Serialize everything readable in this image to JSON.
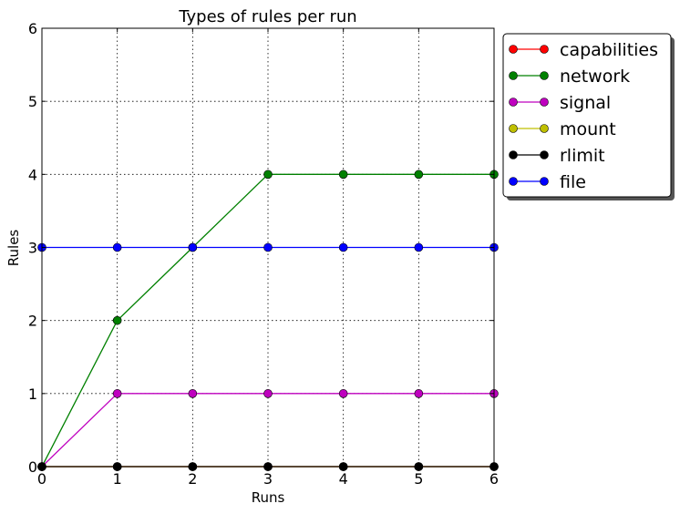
{
  "chart_data": {
    "type": "line",
    "title": "Types of rules per run",
    "xlabel": "Runs",
    "ylabel": "Rules",
    "xlim": [
      0,
      6
    ],
    "ylim": [
      0,
      6
    ],
    "x": [
      0,
      1,
      2,
      3,
      4,
      5,
      6
    ],
    "xticks": [
      "0",
      "1",
      "2",
      "3",
      "4",
      "5",
      "6"
    ],
    "yticks": [
      "0",
      "1",
      "2",
      "3",
      "4",
      "5",
      "6"
    ],
    "grid": true,
    "legend_position": "outside-top-right",
    "markers": true,
    "series": [
      {
        "name": "capabilities",
        "color": "#ff0000",
        "values": [
          0,
          0,
          0,
          0,
          0,
          0,
          0
        ]
      },
      {
        "name": "network",
        "color": "#008000",
        "values": [
          0,
          2,
          3,
          4,
          4,
          4,
          4
        ]
      },
      {
        "name": "signal",
        "color": "#bf00bf",
        "values": [
          0,
          1,
          1,
          1,
          1,
          1,
          1
        ]
      },
      {
        "name": "mount",
        "color": "#bfbf00",
        "values": [
          0,
          0,
          0,
          0,
          0,
          0,
          0
        ]
      },
      {
        "name": "rlimit",
        "color": "#000000",
        "values": [
          0,
          0,
          0,
          0,
          0,
          0,
          0
        ]
      },
      {
        "name": "file",
        "color": "#0000ff",
        "values": [
          3,
          3,
          3,
          3,
          3,
          3,
          3
        ]
      }
    ]
  }
}
